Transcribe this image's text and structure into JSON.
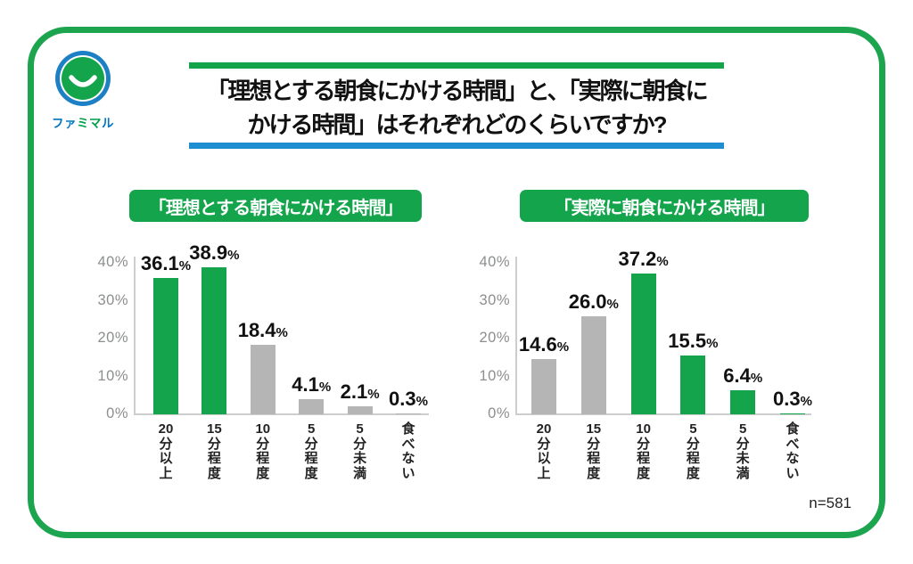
{
  "logo": {
    "wordmark": "ファミマル",
    "wordmark_colors": [
      "#0074C1",
      "#0074C1",
      "#00A049",
      "#00A049",
      "#0074C1"
    ]
  },
  "title": {
    "line1": "「理想とする朝食にかける時間」と、「実際に朝食に",
    "line2": "かける時間」はそれぞれどのくらいですか?"
  },
  "footnote": "n=581",
  "colors": {
    "green": "#14A44C",
    "gray": "#B5B5B6",
    "blue_accent": "#1D8FD1",
    "border_green": "#1CA54E",
    "logo_blue": "#1E80C4",
    "axis_text": "#8C8E8F",
    "axis_line": "#CBCDCE"
  },
  "chart_data": [
    {
      "type": "bar",
      "title": "「理想とする朝食にかける時間」",
      "categories": [
        "20分以上",
        "15分程度",
        "10分程度",
        "5分程度",
        "5分未満",
        "食べない"
      ],
      "values": [
        36.1,
        38.9,
        18.4,
        4.1,
        2.1,
        0.3
      ],
      "value_labels": [
        "36.1%",
        "38.9%",
        "18.4%",
        "4.1%",
        "2.1%",
        "0.3%"
      ],
      "bar_styles": [
        "green",
        "green",
        "gray",
        "gray",
        "gray",
        "gray"
      ],
      "yticks": [
        "0%",
        "10%",
        "20%",
        "30%",
        "40%"
      ],
      "ytick_values": [
        0,
        10,
        20,
        30,
        40
      ],
      "ylim": [
        0,
        40
      ],
      "grid": false,
      "legend": null,
      "xlabel": "",
      "ylabel": ""
    },
    {
      "type": "bar",
      "title": "「実際に朝食にかける時間」",
      "categories": [
        "20分以上",
        "15分程度",
        "10分程度",
        "5分程度",
        "5分未満",
        "食べない"
      ],
      "values": [
        14.6,
        26.0,
        37.2,
        15.5,
        6.4,
        0.3
      ],
      "value_labels": [
        "14.6%",
        "26.0%",
        "37.2%",
        "15.5%",
        "6.4%",
        "0.3%"
      ],
      "bar_styles": [
        "gray",
        "gray",
        "green",
        "green",
        "green",
        "green"
      ],
      "yticks": [
        "0%",
        "10%",
        "20%",
        "30%",
        "40%"
      ],
      "ytick_values": [
        0,
        10,
        20,
        30,
        40
      ],
      "ylim": [
        0,
        40
      ],
      "grid": false,
      "legend": null,
      "xlabel": "",
      "ylabel": ""
    }
  ]
}
